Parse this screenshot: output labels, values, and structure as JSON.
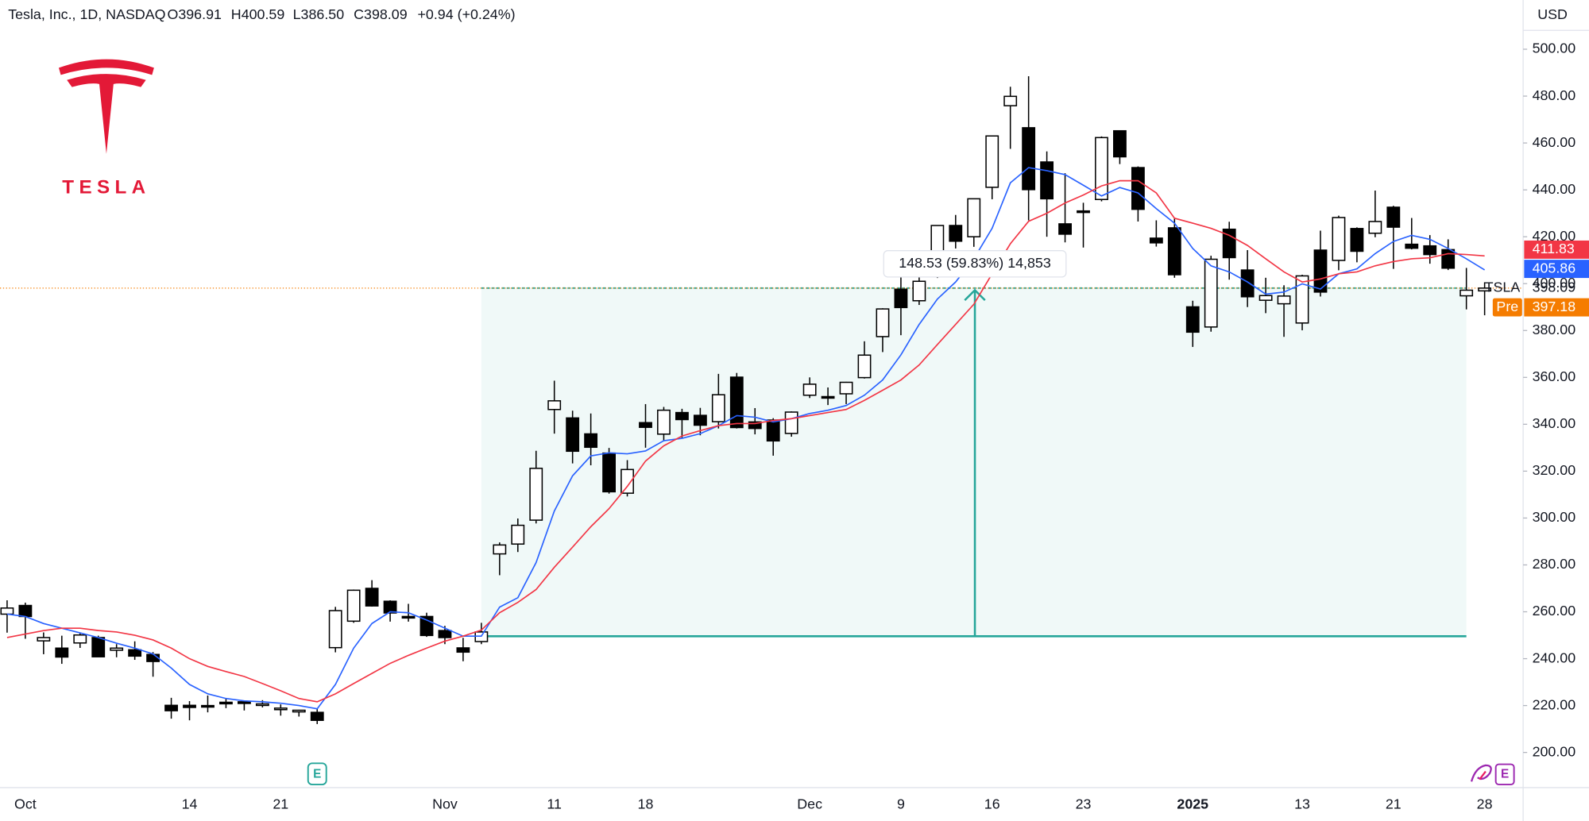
{
  "header": {
    "symbol_info": "Tesla, Inc., 1D, NASDAQ",
    "open": "O396.91",
    "high": "H400.59",
    "low": "L386.50",
    "close": "C398.09",
    "change": "+0.94 (+0.24%)"
  },
  "logo_text": "TESLA",
  "chart_data": {
    "type": "candlestick",
    "currency": "USD",
    "categories": [
      null,
      "Oct",
      null,
      null,
      null,
      null,
      null,
      null,
      null,
      null,
      "14",
      null,
      null,
      null,
      null,
      "21",
      null,
      null,
      null,
      null,
      null,
      null,
      null,
      null,
      "Nov",
      null,
      null,
      null,
      null,
      null,
      "11",
      null,
      null,
      null,
      null,
      "18",
      null,
      null,
      null,
      null,
      null,
      null,
      null,
      null,
      "Dec",
      null,
      null,
      null,
      null,
      "9",
      null,
      null,
      null,
      null,
      "16",
      null,
      null,
      null,
      null,
      "23",
      null,
      null,
      null,
      null,
      null,
      "2025",
      null,
      null,
      null,
      null,
      null,
      "13",
      null,
      null,
      null,
      null,
      "21",
      null,
      null,
      null,
      null,
      "28"
    ],
    "open": [
      259.0,
      262.7,
      247.6,
      244.5,
      246.7,
      249.0,
      243.6,
      243.8,
      241.8,
      220.1,
      220.1,
      220.0,
      221.4,
      221.6,
      220.7,
      218.9,
      217.3,
      217.1,
      244.7,
      256.0,
      270.0,
      264.5,
      258.0,
      258.0,
      252.0,
      244.6,
      247.3,
      284.7,
      288.9,
      299.1,
      346.3,
      342.7,
      335.9,
      327.7,
      310.6,
      340.7,
      335.8,
      345.0,
      343.8,
      341.1,
      360.1,
      341.0,
      341.8,
      336.1,
      352.4,
      351.8,
      353.0,
      359.9,
      377.4,
      397.6,
      392.7,
      409.7,
      424.8,
      420.0,
      441.1,
      475.9,
      466.5,
      451.9,
      425.5,
      431.0,
      435.9,
      465.2,
      449.5,
      419.4,
      423.8,
      390.1,
      381.5,
      423.2,
      405.8,
      392.9,
      391.4,
      383.2,
      414.3,
      409.9,
      423.5,
      421.5,
      432.6,
      416.8,
      416.1,
      414.5,
      394.8,
      396.91
    ],
    "high": [
      264.9,
      263.9,
      251.2,
      249.8,
      250.9,
      249.8,
      246.2,
      247.4,
      242.8,
      223.3,
      221.9,
      224.3,
      222.8,
      222.1,
      222.3,
      220.5,
      218.2,
      218.7,
      262.1,
      269.5,
      273.5,
      264.9,
      263.4,
      259.6,
      254.0,
      248.9,
      255.3,
      289.6,
      299.8,
      328.7,
      358.6,
      345.8,
      344.6,
      329.9,
      324.7,
      348.6,
      347.4,
      346.6,
      347.0,
      361.5,
      361.9,
      346.9,
      342.6,
      345.5,
      360.0,
      355.7,
      358.1,
      375.4,
      389.5,
      404.8,
      409.7,
      424.9,
      429.3,
      436.3,
      463.2,
      483.99,
      488.5,
      456.4,
      447.1,
      434.5,
      462.8,
      465.3,
      450.0,
      427.0,
      427.9,
      392.7,
      411.9,
      426.4,
      414.3,
      402.5,
      399.3,
      403.8,
      422.6,
      429.0,
      424.0,
      439.7,
      433.2,
      428.0,
      420.7,
      418.9,
      406.7,
      400.59
    ],
    "low": [
      251.1,
      248.5,
      241.9,
      237.8,
      244.6,
      240.7,
      240.6,
      239.5,
      232.3,
      214.4,
      213.7,
      217.1,
      218.9,
      217.9,
      219.2,
      215.7,
      215.3,
      212.1,
      242.7,
      255.3,
      262.2,
      255.8,
      255.8,
      249.3,
      246.2,
      238.9,
      246.2,
      275.6,
      285.5,
      297.7,
      336.0,
      323.3,
      322.5,
      310.4,
      309.2,
      330.0,
      332.8,
      334.3,
      335.3,
      338.2,
      338.2,
      335.7,
      326.6,
      334.7,
      351.2,
      348.2,
      348.6,
      359.5,
      370.8,
      378.0,
      390.9,
      402.4,
      415.0,
      415.7,
      436.0,
      457.5,
      427.0,
      420.0,
      417.6,
      415.4,
      435.1,
      451.0,
      426.5,
      415.8,
      402.5,
      373.0,
      379.5,
      401.7,
      390.0,
      387.4,
      377.3,
      380.1,
      394.5,
      405.7,
      409.1,
      419.8,
      406.3,
      414.6,
      408.5,
      405.8,
      389.0,
      386.5
    ],
    "close": [
      261.6,
      258.0,
      249.0,
      240.7,
      250.1,
      240.8,
      244.5,
      241.1,
      238.8,
      217.8,
      219.2,
      219.6,
      221.3,
      220.9,
      220.7,
      218.9,
      218.0,
      213.7,
      260.5,
      269.2,
      262.5,
      259.5,
      257.6,
      249.9,
      249.0,
      242.8,
      251.4,
      288.5,
      296.9,
      321.2,
      350.0,
      328.5,
      330.2,
      311.2,
      320.7,
      338.7,
      346.0,
      342.0,
      339.6,
      352.6,
      338.6,
      338.2,
      332.9,
      345.2,
      357.1,
      351.4,
      357.9,
      369.5,
      389.2,
      389.8,
      401.0,
      424.8,
      418.1,
      436.2,
      463.0,
      479.9,
      440.1,
      436.2,
      421.1,
      430.6,
      462.3,
      454.1,
      431.7,
      417.4,
      403.8,
      379.3,
      410.4,
      411.1,
      394.4,
      394.9,
      394.7,
      403.3,
      396.4,
      428.2,
      413.8,
      426.5,
      424.1,
      415.1,
      412.4,
      406.6,
      397.2,
      398.09
    ],
    "up_color": "#ffffff",
    "down_color": "#000000",
    "series": [
      {
        "color": "#2962ff",
        "values": [
          259,
          258,
          255,
          253,
          251,
          249,
          246.6,
          244.5,
          242,
          236,
          229,
          225,
          223,
          222,
          221.6,
          221,
          220,
          218.6,
          229,
          244.5,
          255,
          260,
          259.6,
          256.5,
          253,
          249.6,
          249.6,
          262,
          266,
          281,
          303,
          318,
          326.5,
          327.8,
          327.4,
          328.6,
          333,
          334,
          336,
          339.4,
          343.7,
          343,
          341,
          342.4,
          344.6,
          346,
          348,
          352.4,
          358.9,
          369.6,
          382.6,
          393.4,
          400.7,
          410.6,
          423.6,
          443,
          449.5,
          448.2,
          446.5,
          442,
          437.4,
          441,
          438.7,
          432,
          425.8,
          415,
          407.6,
          405,
          400.7,
          395.5,
          396.4,
          399.9,
          397.7,
          404.2,
          406.3,
          412.8,
          418,
          420.6,
          418.9,
          415,
          410.6,
          405.86
        ]
      },
      {
        "color": "#f23645",
        "values": [
          249,
          250.5,
          252,
          253,
          253,
          252,
          251.4,
          250,
          248,
          244.5,
          240,
          236.7,
          234.5,
          232.4,
          229.4,
          226.3,
          223,
          221.6,
          225,
          229.4,
          233.7,
          238,
          241.4,
          244.5,
          247.5,
          249.6,
          252.2,
          259.6,
          264,
          269.5,
          279,
          287.6,
          296.3,
          304,
          313.5,
          324.3,
          330.8,
          335,
          337.3,
          339.4,
          340.3,
          340.3,
          341.6,
          342.4,
          343.7,
          345,
          346.3,
          350.2,
          354.5,
          358.9,
          365.3,
          374,
          382.6,
          391.2,
          404.2,
          417,
          426.6,
          430,
          434.4,
          437.8,
          441.7,
          443.9,
          443.9,
          438.7,
          427.9,
          425.8,
          423.6,
          420.6,
          416.3,
          410.6,
          405,
          400.7,
          402,
          404.2,
          405,
          407.6,
          409.4,
          410.6,
          411,
          412.8,
          412.4,
          411.83
        ]
      }
    ],
    "ylim": [
      185,
      521
    ],
    "yticks": [
      {
        "value": 200,
        "label": "200.00"
      },
      {
        "value": 220,
        "label": "220.00"
      },
      {
        "value": 240,
        "label": "240.00"
      },
      {
        "value": 260,
        "label": "260.00"
      },
      {
        "value": 280,
        "label": "280.00"
      },
      {
        "value": 300,
        "label": "300.00"
      },
      {
        "value": 320,
        "label": "320.00"
      },
      {
        "value": 340,
        "label": "340.00"
      },
      {
        "value": 360,
        "label": "360.00"
      },
      {
        "value": 380,
        "label": "380.00"
      },
      {
        "value": 400,
        "label": "400.00"
      },
      {
        "value": 420,
        "label": "420.00"
      },
      {
        "value": 440,
        "label": "440.00"
      },
      {
        "value": 460,
        "label": "460.00"
      },
      {
        "value": 480,
        "label": "480.00"
      },
      {
        "value": 500,
        "label": "500.00"
      }
    ],
    "grid": false,
    "symbol": "TSLA",
    "last_price": 398.09,
    "last_price_color": "#f57c00",
    "premarket": {
      "label": "Pre",
      "price": 397.18,
      "color": "#f57c00"
    },
    "measure": {
      "low": 249.56,
      "high": 398.09,
      "label": "148.53 (59.83%) 14,853",
      "color": "#26a69a"
    },
    "earnings_marker": "E",
    "toolbar_marker": "E"
  }
}
